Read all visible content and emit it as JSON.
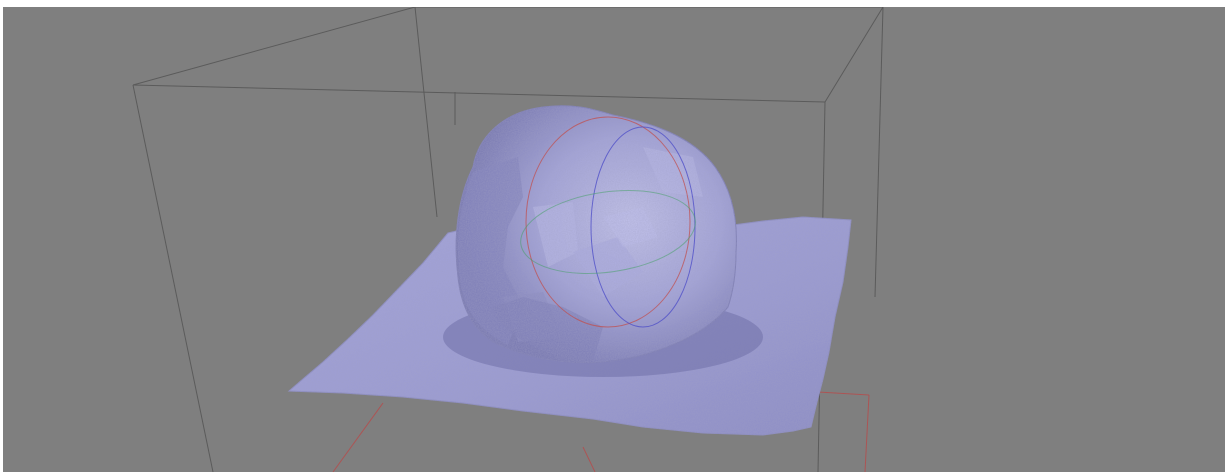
{
  "viewer": {
    "background_color": "#7f7f7f",
    "frame_color": "#ffffff",
    "mesh_color": "#9a9ad2",
    "mesh_shadow_color": "#6a6aa0",
    "mesh_highlight_color": "#c4c4ea",
    "bounding_box_color": "#5a5a5a",
    "ground_axis_color": "#b84a4a",
    "trackball": {
      "x_ring_color": "#c05050",
      "y_ring_color": "#40a060",
      "z_ring_color": "#5050c8"
    }
  }
}
